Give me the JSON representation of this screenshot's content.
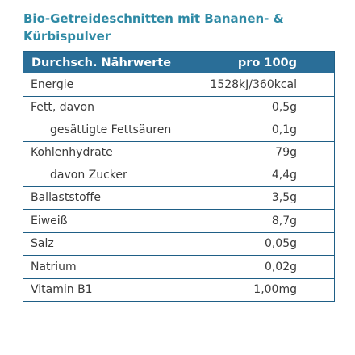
{
  "product": {
    "title": "Bio-Getreideschnitten mit Bananen- & Kürbispulver"
  },
  "table": {
    "header_label": "Durchsch. Nährwerte",
    "header_unit": "pro 100g",
    "groups": [
      {
        "rows": [
          {
            "label": "Energie",
            "value": "1528kJ/360kcal"
          }
        ]
      },
      {
        "rows": [
          {
            "label": "Fett, davon",
            "value": "0,5g"
          },
          {
            "label": "gesättigte Fettsäuren",
            "value": "0,1g"
          }
        ]
      },
      {
        "rows": [
          {
            "label": "Kohlenhydrate",
            "value": "79g"
          },
          {
            "label": "davon Zucker",
            "value": "4,4g"
          }
        ]
      },
      {
        "rows": [
          {
            "label": "Ballaststoffe",
            "value": "3,5g"
          }
        ]
      },
      {
        "rows": [
          {
            "label": "Eiweiß",
            "value": "8,7g"
          }
        ]
      },
      {
        "rows": [
          {
            "label": "Salz",
            "value": "0,05g"
          }
        ]
      },
      {
        "rows": [
          {
            "label": "Natrium",
            "value": "0,02g"
          }
        ]
      },
      {
        "rows": [
          {
            "label": "Vitamin B1",
            "value": "1,00mg"
          }
        ]
      }
    ]
  },
  "colors": {
    "title": "#2f8aa5",
    "header_background": "#2a6e98",
    "border": "#1f5f86",
    "text": "#3a3a3a"
  }
}
